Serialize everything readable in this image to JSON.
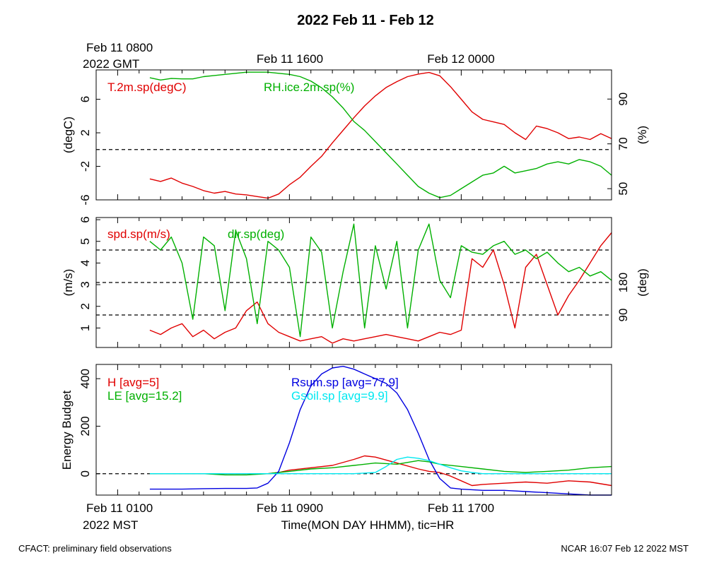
{
  "header": {
    "title": "2022 Feb 11 - Feb 12",
    "gmt_line1": "Feb 11 0800",
    "gmt_line2": "2022 GMT",
    "gmt_ticks": [
      "Feb 11 1600",
      "Feb 12 0000"
    ]
  },
  "footer": {
    "left": "CFACT: preliminary field observations",
    "right": "NCAR 16:07 Feb 12 2022 MST"
  },
  "xaxis": {
    "label": "Time(MON DAY HHMM), tic=HR",
    "start_line1": "Feb 11 0100",
    "start_line2": "2022 MST",
    "ticks": [
      "Feb 11 0900",
      "Feb 11 1700"
    ]
  },
  "colors": {
    "red": "#e00000",
    "green": "#00b000",
    "blue": "#0000e0",
    "cyan": "#00e8f0",
    "axis": "#000000"
  },
  "chart_data": [
    {
      "type": "line",
      "panel": "temperature-humidity",
      "x_unit": "hours since Feb 11 0000 MST",
      "xlim": [
        0,
        24
      ],
      "ylabel": "(degC)",
      "y2label": "(%)",
      "ylim": [
        -6,
        9.5
      ],
      "y2lim": [
        45,
        103
      ],
      "yticks": [
        "-6",
        "-2",
        "2",
        "6"
      ],
      "y2ticks": [
        "50",
        "70",
        "90"
      ],
      "reference_line": 0,
      "series": [
        {
          "name": "T.2m.sp(degC)",
          "axis": "left",
          "color": "red",
          "x": [
            2.5,
            3,
            3.5,
            4,
            4.5,
            5,
            5.5,
            6,
            6.5,
            7,
            7.5,
            8,
            8.5,
            9,
            9.5,
            10,
            10.5,
            11,
            11.5,
            12,
            12.5,
            13,
            13.5,
            14,
            14.5,
            15,
            15.5,
            16,
            16.5,
            17,
            17.5,
            18,
            18.5,
            19,
            19.5,
            20,
            20.5,
            21,
            21.5,
            22,
            22.5,
            23,
            23.5,
            24
          ],
          "values": [
            -3.5,
            -3.8,
            -3.4,
            -4.0,
            -4.4,
            -4.9,
            -5.2,
            -5.0,
            -5.3,
            -5.4,
            -5.6,
            -5.8,
            -5.3,
            -4.2,
            -3.3,
            -2.0,
            -0.8,
            0.8,
            2.3,
            3.8,
            5.2,
            6.4,
            7.4,
            8.1,
            8.7,
            9.0,
            9.2,
            8.8,
            7.5,
            6.0,
            4.5,
            3.6,
            3.3,
            3.0,
            2.0,
            1.2,
            2.8,
            2.5,
            2.0,
            1.3,
            1.5,
            1.2,
            1.9,
            1.3
          ]
        },
        {
          "name": "RH.ice.2m.sp(%)",
          "axis": "right",
          "color": "green",
          "x": [
            2.5,
            3,
            3.5,
            4,
            4.5,
            5,
            5.5,
            6,
            6.5,
            7,
            7.5,
            8,
            8.5,
            9,
            9.5,
            10,
            10.5,
            11,
            11.5,
            12,
            12.5,
            13,
            13.5,
            14,
            14.5,
            15,
            15.5,
            16,
            16.5,
            17,
            17.5,
            18,
            18.5,
            19,
            19.5,
            20,
            20.5,
            21,
            21.5,
            22,
            22.5,
            23,
            23.5,
            24
          ],
          "values": [
            99.5,
            98.5,
            99.2,
            99.0,
            99.0,
            100.0,
            100.5,
            101.0,
            101.5,
            102.0,
            102.0,
            102.0,
            101.5,
            101.0,
            100.0,
            98.0,
            95.0,
            91.0,
            86.0,
            80.0,
            76.0,
            71.0,
            66.0,
            61.0,
            56.0,
            51.0,
            48.0,
            46.0,
            47.0,
            50.0,
            53.0,
            56.0,
            57.0,
            60.0,
            57.0,
            58.0,
            59.0,
            61.0,
            62.0,
            61.0,
            63.0,
            62.0,
            60.0,
            56.0
          ]
        }
      ]
    },
    {
      "type": "line",
      "panel": "wind",
      "x_unit": "hours since Feb 11 0000 MST",
      "xlim": [
        0,
        24
      ],
      "ylabel": "(m/s)",
      "y2label": "(deg)",
      "ylim": [
        0.1,
        6.1
      ],
      "yticks": [
        "1",
        "2",
        "3",
        "4",
        "5",
        "6"
      ],
      "y2ticks": [
        "90",
        "180"
      ],
      "reference_lines": [
        1.6,
        3.1,
        4.6
      ],
      "series": [
        {
          "name": "spd.sp(m/s)",
          "axis": "left",
          "color": "red",
          "x": [
            2.5,
            3,
            3.5,
            4,
            4.5,
            5,
            5.5,
            6,
            6.5,
            7,
            7.5,
            8,
            8.5,
            9,
            9.5,
            10,
            10.5,
            11,
            11.5,
            12,
            12.5,
            13,
            13.5,
            14,
            14.5,
            15,
            15.5,
            16,
            16.5,
            17,
            17.5,
            18,
            18.5,
            19,
            19.5,
            20,
            20.5,
            21,
            21.5,
            22,
            22.5,
            23,
            23.5,
            24
          ],
          "values": [
            0.9,
            0.7,
            1.0,
            1.2,
            0.6,
            0.9,
            0.5,
            0.8,
            1.0,
            1.8,
            2.2,
            1.2,
            0.8,
            0.6,
            0.4,
            0.5,
            0.6,
            0.3,
            0.5,
            0.4,
            0.5,
            0.6,
            0.7,
            0.6,
            0.5,
            0.4,
            0.6,
            0.8,
            0.7,
            0.9,
            4.2,
            3.8,
            4.6,
            3.0,
            1.0,
            3.8,
            4.4,
            3.0,
            1.6,
            2.5,
            3.2,
            4.0,
            4.8,
            5.4
          ]
        },
        {
          "name": "dir.sp(deg)",
          "axis": "right",
          "color": "green",
          "x": [
            2.5,
            3,
            3.5,
            4,
            4.5,
            5,
            5.5,
            6,
            6.5,
            7,
            7.5,
            8,
            8.5,
            9,
            9.5,
            10,
            10.5,
            11,
            11.5,
            12,
            12.5,
            13,
            13.5,
            14,
            14.5,
            15,
            15.5,
            16,
            16.5,
            17,
            17.5,
            18,
            18.5,
            19,
            19.5,
            20,
            20.5,
            21,
            21.5,
            22,
            22.5,
            23,
            23.5,
            24
          ],
          "values": [
            5.0,
            4.6,
            5.2,
            4.0,
            1.4,
            5.2,
            4.8,
            1.8,
            5.5,
            4.2,
            1.2,
            5.0,
            4.6,
            3.8,
            0.6,
            5.2,
            4.5,
            1.0,
            3.6,
            5.8,
            1.0,
            4.8,
            2.8,
            5.0,
            1.0,
            4.6,
            5.8,
            3.2,
            2.4,
            4.8,
            4.5,
            4.4,
            4.8,
            5.0,
            4.4,
            4.6,
            4.2,
            4.5,
            4.0,
            3.6,
            3.8,
            3.4,
            3.6,
            3.2
          ]
        }
      ]
    },
    {
      "type": "line",
      "panel": "energy-budget",
      "x_unit": "hours since Feb 11 0000 MST",
      "xlim": [
        0,
        24
      ],
      "ylabel": "Energy Budget",
      "ylim": [
        -90,
        460
      ],
      "yticks": [
        "0",
        "200",
        "400"
      ],
      "reference_line": 0,
      "series": [
        {
          "name": "H [avg=5]",
          "color": "red",
          "x": [
            2.5,
            3,
            4,
            5,
            6,
            7,
            8,
            8.5,
            9,
            10,
            11,
            12,
            12.5,
            13,
            14,
            15,
            15.5,
            16,
            16.5,
            17,
            17.5,
            18,
            19,
            20,
            21,
            22,
            23,
            24
          ],
          "values": [
            0,
            0,
            0,
            0,
            0,
            0,
            0,
            5,
            15,
            25,
            35,
            60,
            75,
            70,
            45,
            20,
            10,
            5,
            -10,
            -30,
            -50,
            -45,
            -40,
            -35,
            -40,
            -30,
            -35,
            -50
          ]
        },
        {
          "name": "LE [avg=15.2]",
          "color": "green",
          "x": [
            2.5,
            3,
            4,
            5,
            6,
            7,
            8,
            8.5,
            9,
            10,
            11,
            12,
            12.5,
            13,
            14,
            15,
            15.5,
            16,
            17,
            18,
            19,
            20,
            21,
            22,
            23,
            24
          ],
          "values": [
            0,
            0,
            0,
            0,
            -5,
            -5,
            0,
            5,
            10,
            20,
            25,
            35,
            40,
            45,
            40,
            55,
            50,
            40,
            30,
            20,
            10,
            5,
            10,
            15,
            25,
            30
          ]
        },
        {
          "name": "Rsum.sp [avg=77.9]",
          "color": "blue",
          "x": [
            2.5,
            3,
            4,
            5,
            6,
            7,
            7.5,
            8,
            8.5,
            9,
            9.5,
            10,
            10.5,
            11,
            11.5,
            12,
            12.5,
            13,
            13.5,
            14,
            14.5,
            15,
            15.5,
            16,
            16.5,
            17,
            18,
            19,
            20,
            21,
            22,
            23,
            24
          ],
          "values": [
            -65,
            -65,
            -65,
            -63,
            -62,
            -62,
            -60,
            -40,
            10,
            130,
            270,
            370,
            420,
            445,
            452,
            440,
            420,
            400,
            380,
            340,
            270,
            170,
            60,
            -20,
            -60,
            -65,
            -70,
            -70,
            -75,
            -80,
            -85,
            -90,
            -90
          ]
        },
        {
          "name": "Gsoil.sp [avg=9.9]",
          "color": "cyan",
          "x": [
            2.5,
            3,
            4,
            5,
            6,
            7,
            8,
            9,
            10,
            11,
            12,
            13,
            13.5,
            14,
            14.5,
            15,
            15.5,
            16,
            16.5,
            17,
            17.5,
            18,
            19,
            20,
            21,
            22,
            23,
            24
          ],
          "values": [
            0,
            0,
            0,
            0,
            0,
            0,
            0,
            0,
            0,
            0,
            0,
            5,
            30,
            60,
            70,
            65,
            55,
            40,
            25,
            12,
            5,
            0,
            0,
            0,
            0,
            0,
            0,
            0
          ]
        }
      ]
    }
  ]
}
